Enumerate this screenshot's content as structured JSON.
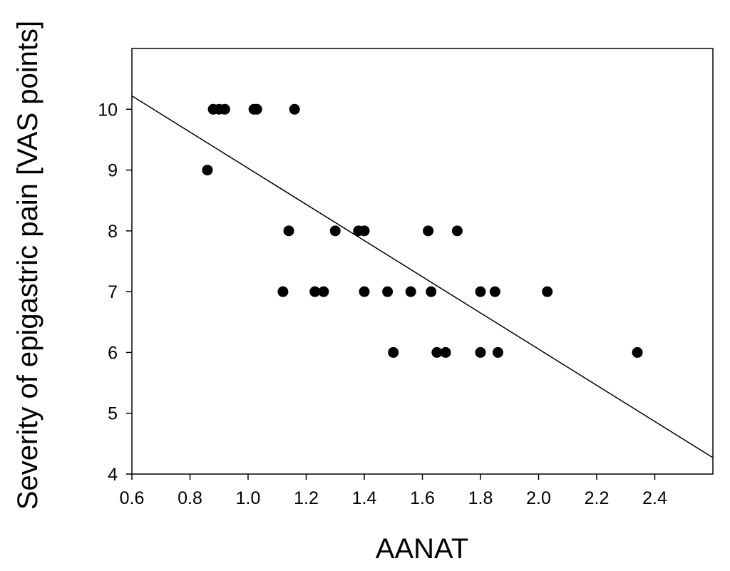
{
  "chart_data": {
    "type": "scatter",
    "xlabel": "AANAT",
    "ylabel": "Severity of epigastric pain [VAS points]",
    "xlim": [
      0.6,
      2.6
    ],
    "ylim": [
      4,
      11
    ],
    "x_ticks": [
      "0.6",
      "0.8",
      "1.0",
      "1.2",
      "1.4",
      "1.6",
      "1.8",
      "2.0",
      "2.2",
      "2.4"
    ],
    "y_ticks": [
      "4",
      "5",
      "6",
      "7",
      "8",
      "9",
      "10"
    ],
    "grid": false,
    "colors": {
      "points": "#000000",
      "line": "#000000"
    },
    "points": [
      {
        "x": 0.86,
        "y": 9
      },
      {
        "x": 0.88,
        "y": 10
      },
      {
        "x": 0.9,
        "y": 10
      },
      {
        "x": 0.92,
        "y": 10
      },
      {
        "x": 1.02,
        "y": 10
      },
      {
        "x": 1.03,
        "y": 10
      },
      {
        "x": 1.16,
        "y": 10
      },
      {
        "x": 1.14,
        "y": 8
      },
      {
        "x": 1.3,
        "y": 8
      },
      {
        "x": 1.38,
        "y": 8
      },
      {
        "x": 1.4,
        "y": 8
      },
      {
        "x": 1.62,
        "y": 8
      },
      {
        "x": 1.72,
        "y": 8
      },
      {
        "x": 1.12,
        "y": 7
      },
      {
        "x": 1.23,
        "y": 7
      },
      {
        "x": 1.26,
        "y": 7
      },
      {
        "x": 1.4,
        "y": 7
      },
      {
        "x": 1.48,
        "y": 7
      },
      {
        "x": 1.56,
        "y": 7
      },
      {
        "x": 1.63,
        "y": 7
      },
      {
        "x": 1.8,
        "y": 7
      },
      {
        "x": 1.85,
        "y": 7
      },
      {
        "x": 2.03,
        "y": 7
      },
      {
        "x": 1.5,
        "y": 6
      },
      {
        "x": 1.65,
        "y": 6
      },
      {
        "x": 1.68,
        "y": 6
      },
      {
        "x": 1.8,
        "y": 6
      },
      {
        "x": 1.86,
        "y": 6
      },
      {
        "x": 2.34,
        "y": 6
      }
    ],
    "regression_line": {
      "x1": 0.6,
      "y1": 10.22,
      "x2": 2.6,
      "y2": 4.27
    }
  }
}
